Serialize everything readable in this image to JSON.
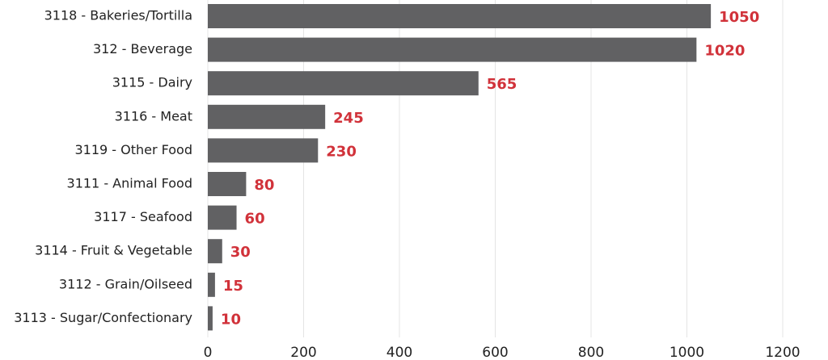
{
  "chart_data": {
    "type": "bar",
    "orientation": "horizontal",
    "categories": [
      "3118 - Bakeries/Tortilla",
      "312 - Beverage",
      "3115 - Dairy",
      "3116 - Meat",
      "3119 - Other Food",
      "3111 - Animal Food",
      "3117 - Seafood",
      "3114 - Fruit & Vegetable",
      "3112 - Grain/Oilseed",
      "3113 - Sugar/Confectionary"
    ],
    "values": [
      1050,
      1020,
      565,
      245,
      230,
      80,
      60,
      30,
      15,
      10
    ],
    "data_labels": [
      "1050",
      "1020",
      "565",
      "245",
      "230",
      "80",
      "60",
      "30",
      "15",
      "10"
    ],
    "xticks": [
      0,
      200,
      400,
      600,
      800,
      1000,
      1200
    ],
    "xlim": [
      0,
      1200
    ],
    "xlabel": "",
    "ylabel": "",
    "title": "",
    "grid": "vertical",
    "legend": "none",
    "colors": {
      "bar": "#616163",
      "data_label": "#d1323a",
      "grid": "#e4e4e4",
      "text": "#222222"
    }
  }
}
